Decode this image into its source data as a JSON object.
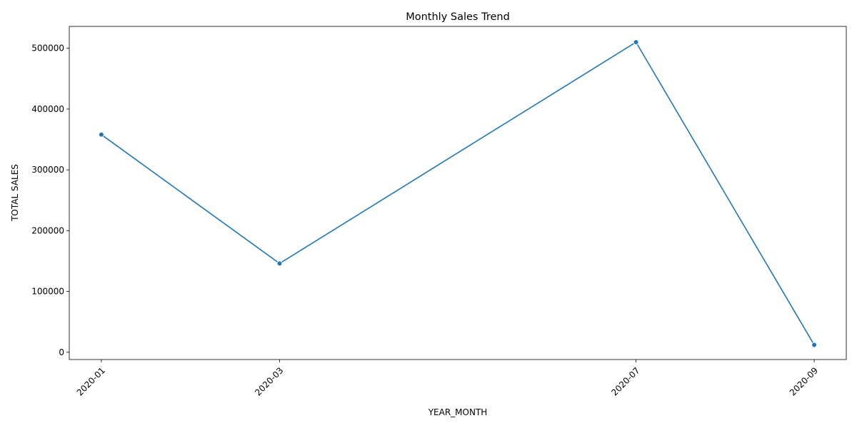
{
  "chart_data": {
    "type": "line",
    "title": "Monthly Sales Trend",
    "xlabel": "YEAR_MONTH",
    "ylabel": "TOTAL SALES",
    "x": [
      "2020-01",
      "2020-03",
      "2020-07",
      "2020-09"
    ],
    "series": [
      {
        "values": [
          358000,
          146000,
          510000,
          12000
        ],
        "color": "#1f77b4"
      }
    ],
    "ylim": [
      -12000,
      536000
    ],
    "yticks": [
      0,
      100000,
      200000,
      300000,
      400000,
      500000
    ],
    "xticks": [
      "2020-01",
      "2020-03",
      "2020-07",
      "2020-09"
    ],
    "x_tick_rotation_deg": 45,
    "grid": false,
    "legend": "none",
    "markers": true
  }
}
